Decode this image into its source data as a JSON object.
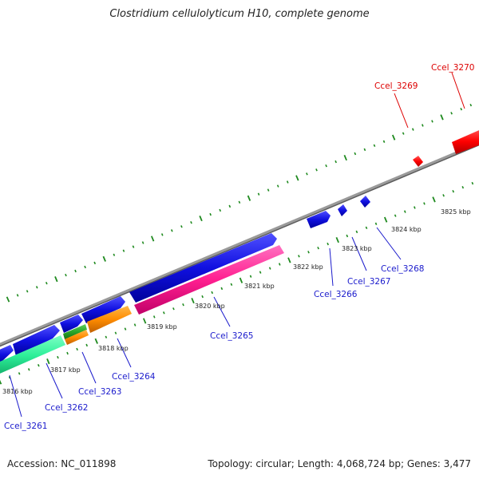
{
  "title": "Clostridium cellulolyticum H10, complete genome",
  "footer": {
    "accession": "Accession: NC_011898",
    "summary": "Topology: circular; Length: 4,068,724 bp; Genes: 3,477"
  },
  "colors": {
    "backbone": "#808080",
    "tick": "#1f8a1f",
    "gene_blue": "#1010e0",
    "gene_red": "#ff0000",
    "gene_pink": "#ff1f90",
    "gene_orange": "#ff8c00",
    "gene_green": "#2aa82a",
    "gene_mint": "#2ef09a",
    "label_blue": "#1a1acc",
    "label_red": "#dd0000"
  },
  "ruler_labels": [
    "3816 kbp",
    "3817 kbp",
    "3818 kbp",
    "3819 kbp",
    "3820 kbp",
    "3821 kbp",
    "3822 kbp",
    "3823 kbp",
    "3824 kbp",
    "3825 kbp"
  ],
  "genes": [
    {
      "label": "Ccel_3261",
      "color": "blue"
    },
    {
      "label": "Ccel_3262",
      "color": "blue"
    },
    {
      "label": "Ccel_3263",
      "color": "blue"
    },
    {
      "label": "Ccel_3264",
      "color": "blue"
    },
    {
      "label": "Ccel_3265",
      "color": "blue"
    },
    {
      "label": "Ccel_3266",
      "color": "blue"
    },
    {
      "label": "Ccel_3267",
      "color": "blue"
    },
    {
      "label": "Ccel_3268",
      "color": "blue"
    },
    {
      "label": "Ccel_3269",
      "color": "red"
    },
    {
      "label": "Ccel_3270",
      "color": "red"
    }
  ]
}
